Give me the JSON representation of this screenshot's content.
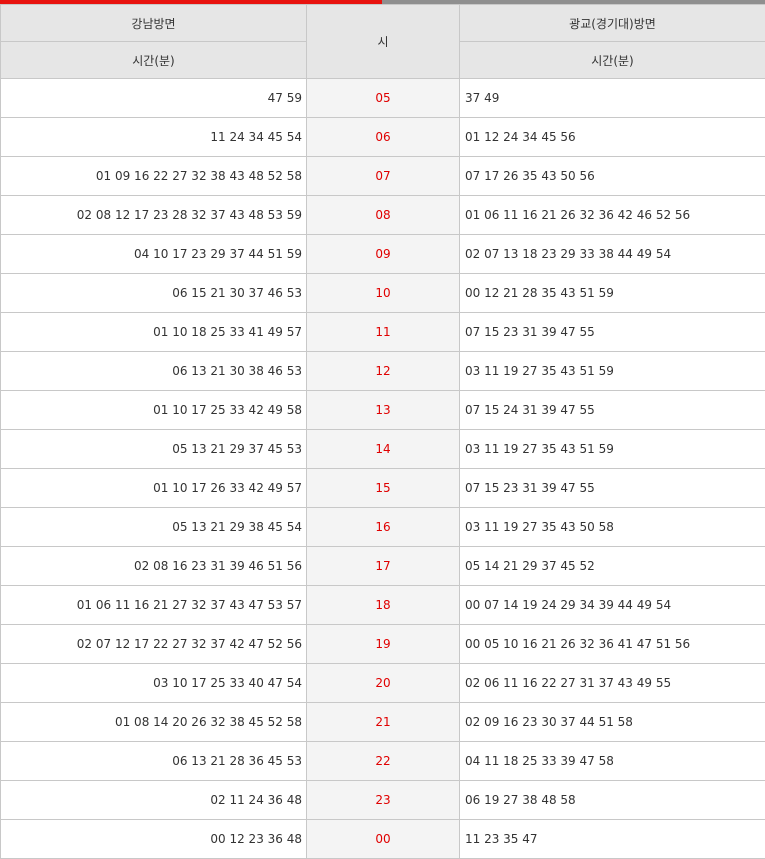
{
  "header": {
    "left_direction": "강남방면",
    "right_direction": "광교(경기대)방면",
    "hour_label": "시",
    "minutes_label_left": "시간(분)",
    "minutes_label_right": "시간(분)"
  },
  "rows": [
    {
      "hour": "05",
      "left": "47 59",
      "right": "37 49"
    },
    {
      "hour": "06",
      "left": "11 24 34 45 54",
      "right": "01 12 24 34 45 56"
    },
    {
      "hour": "07",
      "left": "01 09 16 22 27 32 38 43 48 52 58",
      "right": "07 17 26 35 43 50 56"
    },
    {
      "hour": "08",
      "left": "02 08 12 17 23 28 32 37 43 48 53 59",
      "right": "01 06 11 16 21 26 32 36 42 46 52 56"
    },
    {
      "hour": "09",
      "left": "04 10 17 23 29 37 44 51 59",
      "right": "02 07 13 18 23 29 33 38 44 49 54"
    },
    {
      "hour": "10",
      "left": "06 15 21 30 37 46 53",
      "right": "00 12 21 28 35 43 51 59"
    },
    {
      "hour": "11",
      "left": "01 10 18 25 33 41 49 57",
      "right": "07 15 23 31 39 47 55"
    },
    {
      "hour": "12",
      "left": "06 13 21 30 38 46 53",
      "right": "03 11 19 27 35 43 51 59"
    },
    {
      "hour": "13",
      "left": "01 10 17 25 33 42 49 58",
      "right": "07 15 24 31 39 47 55"
    },
    {
      "hour": "14",
      "left": "05 13 21 29 37 45 53",
      "right": "03 11 19 27 35 43 51 59"
    },
    {
      "hour": "15",
      "left": "01 10 17 26 33 42 49 57",
      "right": "07 15 23 31 39 47 55"
    },
    {
      "hour": "16",
      "left": "05 13 21 29 38 45 54",
      "right": "03 11 19 27 35 43 50 58"
    },
    {
      "hour": "17",
      "left": "02 08 16 23 31 39 46 51 56",
      "right": "05 14 21 29 37 45 52"
    },
    {
      "hour": "18",
      "left": "01 06 11 16 21 27 32 37 43 47 53 57",
      "right": "00 07 14 19 24 29 34 39 44 49 54"
    },
    {
      "hour": "19",
      "left": "02 07 12 17 22 27 32 37 42 47 52 56",
      "right": "00 05 10 16 21 26 32 36 41 47 51 56"
    },
    {
      "hour": "20",
      "left": "03 10 17 25 33 40 47 54",
      "right": "02 06 11 16 22 27 31 37 43 49 55"
    },
    {
      "hour": "21",
      "left": "01 08 14 20 26 32 38 45 52 58",
      "right": "02 09 16 23 30 37 44 51 58"
    },
    {
      "hour": "22",
      "left": "06 13 21 28 36 45 53",
      "right": "04 11 18 25 33 39 47 58"
    },
    {
      "hour": "23",
      "left": "02 11 24 36 48",
      "right": "06 19 27 38 48 58"
    },
    {
      "hour": "00",
      "left": "00 12 23 36 48",
      "right": "11 23 35 47"
    }
  ],
  "colors": {
    "accent": "#e8130f",
    "hour_text": "#e00000",
    "header_bg": "#e6e6e6",
    "hour_bg": "#f4f4f4",
    "border": "#c8c8c8"
  }
}
